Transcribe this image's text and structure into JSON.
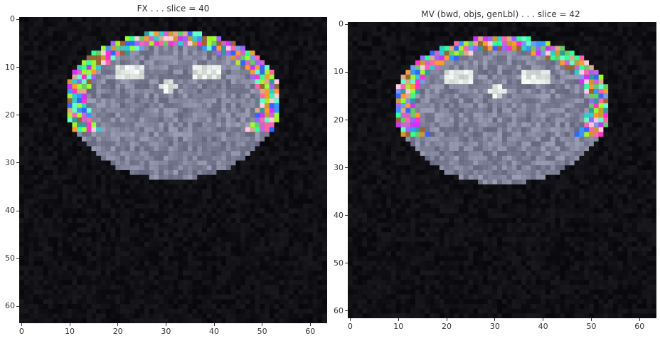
{
  "panels": [
    {
      "title": "FX . . . slice = 40",
      "x_ticks": [
        "0",
        "10",
        "20",
        "30",
        "40",
        "50",
        "60"
      ],
      "y_ticks": [
        "0",
        "10",
        "20",
        "30",
        "40",
        "50",
        "60"
      ]
    },
    {
      "title": "MV (bwd, objs, genLbl) . . . slice = 42",
      "x_ticks": [
        "0",
        "10",
        "20",
        "30",
        "40",
        "50",
        "60"
      ],
      "y_ticks": [
        "0",
        "10",
        "20",
        "30",
        "40",
        "50",
        "60"
      ]
    }
  ],
  "image": {
    "grid_size": [
      64,
      64
    ],
    "background_color": "#0c0c10",
    "tissue_color": "#8a8ca6",
    "bright_color": "#e8ece8"
  },
  "label_colors": [
    "#ff33cc",
    "#cc33ff",
    "#33ff99",
    "#99ff33",
    "#3399ff",
    "#ff9933",
    "#33cccc",
    "#cc9933",
    "#ffccdd",
    "#9966ff",
    "#66cc66",
    "#ff66aa",
    "#3366ff",
    "#cc66cc",
    "#66ffcc",
    "#996633",
    "#ddaa88",
    "#aaee33",
    "#7799ee",
    "#339999"
  ]
}
